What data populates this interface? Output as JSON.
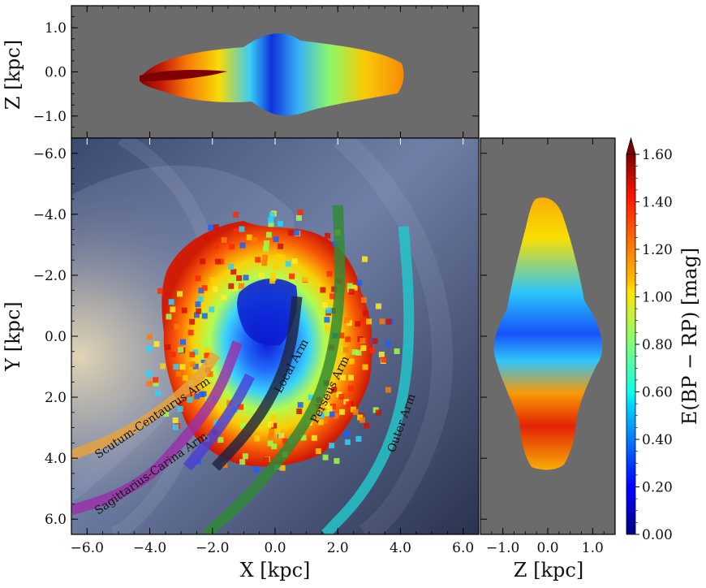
{
  "chart_data": [
    {
      "type": "heatmap",
      "panel": "top",
      "xlabel": "",
      "ylabel": "Z [kpc]",
      "xlim": [
        -6.5,
        6.5
      ],
      "ylim": [
        -1.5,
        1.5
      ],
      "x_ticks": [
        -6.0,
        -4.0,
        -2.0,
        0.0,
        2.0,
        4.0,
        6.0
      ],
      "y_ticks": [
        -1.0,
        0.0,
        1.0
      ],
      "y_tick_labels": [
        "−1.0",
        "0.0",
        "1.0"
      ],
      "background": "#6b6b6b"
    },
    {
      "type": "heatmap",
      "panel": "main",
      "xlabel": "X [kpc]",
      "ylabel": "Y [kpc]",
      "xlim": [
        -6.5,
        6.5
      ],
      "ylim": [
        -6.5,
        6.5
      ],
      "y_inverted": true,
      "x_ticks": [
        -6.0,
        -4.0,
        -2.0,
        0.0,
        2.0,
        4.0,
        6.0
      ],
      "x_tick_labels": [
        "−6.0",
        "−4.0",
        "−2.0",
        "0.0",
        "2.0",
        "4.0",
        "6.0"
      ],
      "y_ticks": [
        -6.0,
        -4.0,
        -2.0,
        0.0,
        2.0,
        4.0,
        6.0
      ],
      "y_tick_labels": [
        "−6.0",
        "−4.0",
        "−2.0",
        "0.0",
        "2.0",
        "4.0",
        "6.0"
      ],
      "spiral_arms": [
        {
          "name": "Scutum-Centaurus Arm",
          "color": "#e8a23a",
          "points": [
            [
              -6.5,
              3.9
            ],
            [
              -5.2,
              3.4
            ],
            [
              -4.0,
              2.7
            ],
            [
              -3.0,
              1.9
            ],
            [
              -2.3,
              1.2
            ],
            [
              -1.9,
              0.6
            ]
          ]
        },
        {
          "name": "Sagittarius-Carina Arm",
          "color": "#9a30a8",
          "points": [
            [
              -6.5,
              5.7
            ],
            [
              -5.2,
              5.3
            ],
            [
              -4.0,
              4.6
            ],
            [
              -3.1,
              3.6
            ],
            [
              -2.3,
              2.6
            ],
            [
              -1.7,
              1.6
            ],
            [
              -1.2,
              0.2
            ]
          ]
        },
        {
          "name": "",
          "color": "#4a3fd8",
          "points": [
            [
              -2.8,
              4.3
            ],
            [
              -1.9,
              3.2
            ],
            [
              -1.2,
              2.1
            ],
            [
              -0.8,
              1.3
            ]
          ]
        },
        {
          "name": "Local Arm",
          "color": "#1e2440",
          "points": [
            [
              -1.9,
              4.3
            ],
            [
              -0.9,
              3.2
            ],
            [
              -0.1,
              2.0
            ],
            [
              0.5,
              0.5
            ],
            [
              0.7,
              -1.3
            ]
          ]
        },
        {
          "name": "Perseus Arm",
          "color": "#2f8a35",
          "points": [
            [
              -2.2,
              6.5
            ],
            [
              -0.8,
              5.2
            ],
            [
              0.5,
              3.6
            ],
            [
              1.4,
              2.1
            ],
            [
              1.9,
              0.3
            ],
            [
              2.1,
              -1.8
            ],
            [
              2.0,
              -4.3
            ]
          ]
        },
        {
          "name": "Outer Arm",
          "color": "#22c8cc",
          "points": [
            [
              1.6,
              6.5
            ],
            [
              2.8,
              5.2
            ],
            [
              3.7,
              3.5
            ],
            [
              4.2,
              1.5
            ],
            [
              4.3,
              -1.0
            ],
            [
              4.1,
              -3.6
            ]
          ]
        }
      ],
      "background_image": "galaxy-artist-impression"
    },
    {
      "type": "heatmap",
      "panel": "right",
      "xlabel": "Z [kpc]",
      "ylabel": "",
      "xlim": [
        -1.5,
        1.5
      ],
      "ylim": [
        -6.5,
        6.5
      ],
      "x_ticks": [
        -1.0,
        0.0,
        1.0
      ],
      "x_tick_labels": [
        "−1.0",
        "0.0",
        "1.0"
      ],
      "background": "#6b6b6b"
    }
  ],
  "colorbar": {
    "label": "E(BP − RP) [mag]",
    "vmin": 0.0,
    "vmax": 1.6,
    "ticks": [
      0.0,
      0.2,
      0.4,
      0.6,
      0.8,
      1.0,
      1.2,
      1.4,
      1.6
    ],
    "tick_labels": [
      "0.00",
      "0.20",
      "0.40",
      "0.60",
      "0.80",
      "1.00",
      "1.20",
      "1.40",
      "1.60"
    ],
    "extend": "max",
    "colormap": "jet"
  }
}
